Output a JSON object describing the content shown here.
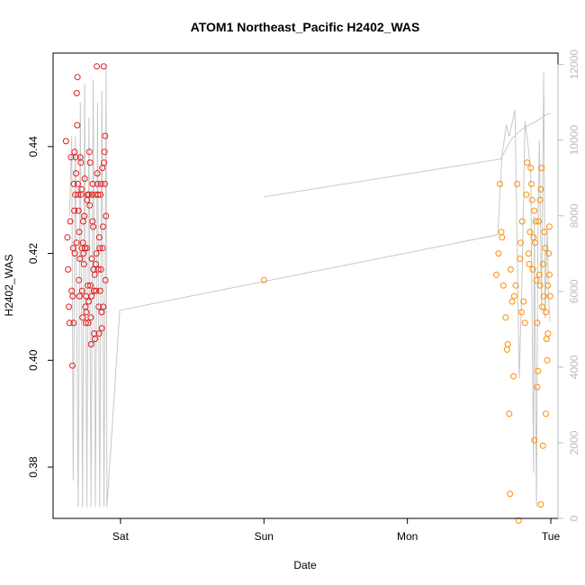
{
  "chart_data": {
    "type": "scatter",
    "title": "ATOM1 Northeast_Pacific H2402_WAS",
    "xlabel": "Date",
    "ylabel": "H2402_WAS",
    "x_ticks": [
      "Sat",
      "Sun",
      "Mon",
      "Tue"
    ],
    "y_ticks": [
      "0.38",
      "0.40",
      "0.42",
      "0.44"
    ],
    "y2_ticks": [
      "0",
      "2000",
      "4000",
      "6000",
      "8000",
      "10000",
      "12000"
    ],
    "xlim_days": [
      -0.47,
      3.05
    ],
    "ylim": [
      0.3704,
      0.4575
    ],
    "y2lim": [
      0,
      12300
    ],
    "colors": {
      "series_1": "#e31a1c",
      "series_2": "#ff8c00",
      "depth_line": "#c8c8c8",
      "frame": "#000000"
    },
    "series": [
      {
        "points": [
          [
            -0.38,
            0.441
          ],
          [
            -0.37,
            0.423
          ],
          [
            -0.365,
            0.417
          ],
          [
            -0.36,
            0.41
          ],
          [
            -0.355,
            0.407
          ],
          [
            -0.35,
            0.426
          ],
          [
            -0.345,
            0.438
          ],
          [
            -0.34,
            0.413
          ],
          [
            -0.335,
            0.399
          ],
          [
            -0.333,
            0.412
          ],
          [
            -0.33,
            0.421
          ],
          [
            -0.327,
            0.407
          ],
          [
            -0.325,
            0.433
          ],
          [
            -0.322,
            0.428
          ],
          [
            -0.32,
            0.439
          ],
          [
            -0.318,
            0.42
          ],
          [
            -0.315,
            0.431
          ],
          [
            -0.312,
            0.438
          ],
          [
            -0.31,
            0.435
          ],
          [
            -0.307,
            0.422
          ],
          [
            -0.305,
            0.45
          ],
          [
            -0.302,
            0.444
          ],
          [
            -0.3,
            0.453
          ],
          [
            -0.298,
            0.433
          ],
          [
            -0.295,
            0.431
          ],
          [
            -0.293,
            0.428
          ],
          [
            -0.29,
            0.415
          ],
          [
            -0.288,
            0.424
          ],
          [
            -0.285,
            0.412
          ],
          [
            -0.283,
            0.419
          ],
          [
            -0.28,
            0.438
          ],
          [
            -0.277,
            0.437
          ],
          [
            -0.275,
            0.431
          ],
          [
            -0.272,
            0.432
          ],
          [
            -0.27,
            0.421
          ],
          [
            -0.268,
            0.413
          ],
          [
            -0.265,
            0.408
          ],
          [
            -0.262,
            0.422
          ],
          [
            -0.26,
            0.426
          ],
          [
            -0.258,
            0.42
          ],
          [
            -0.255,
            0.418
          ],
          [
            -0.252,
            0.427
          ],
          [
            -0.25,
            0.434
          ],
          [
            -0.248,
            0.421
          ],
          [
            -0.245,
            0.41
          ],
          [
            -0.242,
            0.407
          ],
          [
            -0.24,
            0.412
          ],
          [
            -0.238,
            0.409
          ],
          [
            -0.235,
            0.421
          ],
          [
            -0.233,
            0.43
          ],
          [
            -0.23,
            0.431
          ],
          [
            -0.228,
            0.414
          ],
          [
            -0.225,
            0.407
          ],
          [
            -0.222,
            0.411
          ],
          [
            -0.22,
            0.431
          ],
          [
            -0.217,
            0.439
          ],
          [
            -0.215,
            0.429
          ],
          [
            -0.212,
            0.437
          ],
          [
            -0.21,
            0.414
          ],
          [
            -0.207,
            0.408
          ],
          [
            -0.205,
            0.403
          ],
          [
            -0.202,
            0.412
          ],
          [
            -0.2,
            0.419
          ],
          [
            -0.198,
            0.431
          ],
          [
            -0.195,
            0.426
          ],
          [
            -0.193,
            0.433
          ],
          [
            -0.19,
            0.425
          ],
          [
            -0.188,
            0.417
          ],
          [
            -0.185,
            0.413
          ],
          [
            -0.183,
            0.405
          ],
          [
            -0.18,
            0.416
          ],
          [
            -0.178,
            0.404
          ],
          [
            -0.175,
            0.431
          ],
          [
            -0.172,
            0.418
          ],
          [
            -0.17,
            0.413
          ],
          [
            -0.168,
            0.42
          ],
          [
            -0.165,
            0.455
          ],
          [
            -0.162,
            0.435
          ],
          [
            -0.16,
            0.433
          ],
          [
            -0.157,
            0.431
          ],
          [
            -0.155,
            0.417
          ],
          [
            -0.152,
            0.41
          ],
          [
            -0.15,
            0.405
          ],
          [
            -0.148,
            0.423
          ],
          [
            -0.145,
            0.421
          ],
          [
            -0.142,
            0.413
          ],
          [
            -0.14,
            0.431
          ],
          [
            -0.137,
            0.417
          ],
          [
            -0.135,
            0.433
          ],
          [
            -0.132,
            0.409
          ],
          [
            -0.13,
            0.406
          ],
          [
            -0.127,
            0.436
          ],
          [
            -0.125,
            0.421
          ],
          [
            -0.122,
            0.425
          ],
          [
            -0.12,
            0.41
          ],
          [
            -0.117,
            0.455
          ],
          [
            -0.115,
            0.437
          ],
          [
            -0.112,
            0.439
          ],
          [
            -0.11,
            0.433
          ],
          [
            -0.107,
            0.442
          ],
          [
            -0.105,
            0.415
          ],
          [
            -0.102,
            0.427
          ]
        ]
      },
      {
        "points": [
          [
            1.0,
            0.415
          ],
          [
            2.62,
            0.416
          ],
          [
            2.635,
            0.42
          ],
          [
            2.645,
            0.433
          ],
          [
            2.655,
            0.424
          ],
          [
            2.66,
            0.423
          ],
          [
            2.67,
            0.414
          ],
          [
            2.685,
            0.408
          ],
          [
            2.695,
            0.402
          ],
          [
            2.7,
            0.403
          ],
          [
            2.71,
            0.39
          ],
          [
            2.715,
            0.375
          ],
          [
            2.72,
            0.417
          ],
          [
            2.73,
            0.411
          ],
          [
            2.74,
            0.397
          ],
          [
            2.745,
            0.412
          ],
          [
            2.755,
            0.414
          ],
          [
            2.765,
            0.433
          ],
          [
            2.775,
            0.37
          ],
          [
            2.785,
            0.419
          ],
          [
            2.79,
            0.422
          ],
          [
            2.795,
            0.409
          ],
          [
            2.8,
            0.426
          ],
          [
            2.81,
            0.411
          ],
          [
            2.82,
            0.407
          ],
          [
            2.83,
            0.431
          ],
          [
            2.835,
            0.437
          ],
          [
            2.845,
            0.42
          ],
          [
            2.85,
            0.418
          ],
          [
            2.855,
            0.424
          ],
          [
            2.86,
            0.436
          ],
          [
            2.865,
            0.433
          ],
          [
            2.87,
            0.43
          ],
          [
            2.875,
            0.417
          ],
          [
            2.88,
            0.423
          ],
          [
            2.885,
            0.428
          ],
          [
            2.89,
            0.422
          ],
          [
            2.895,
            0.426
          ],
          [
            2.9,
            0.415
          ],
          [
            2.905,
            0.407
          ],
          [
            2.91,
            0.398
          ],
          [
            2.915,
            0.426
          ],
          [
            2.92,
            0.416
          ],
          [
            2.925,
            0.414
          ],
          [
            2.93,
            0.432
          ],
          [
            2.935,
            0.436
          ],
          [
            2.94,
            0.41
          ],
          [
            2.945,
            0.418
          ],
          [
            2.95,
            0.412
          ],
          [
            2.955,
            0.424
          ],
          [
            2.96,
            0.421
          ],
          [
            2.965,
            0.409
          ],
          [
            2.97,
            0.404
          ],
          [
            2.975,
            0.4
          ],
          [
            2.98,
            0.414
          ],
          [
            2.985,
            0.42
          ],
          [
            2.99,
            0.416
          ],
          [
            2.995,
            0.412
          ],
          [
            2.885,
            0.385
          ],
          [
            2.965,
            0.39
          ],
          [
            2.93,
            0.373
          ],
          [
            2.945,
            0.384
          ],
          [
            2.905,
            0.395
          ],
          [
            2.925,
            0.43
          ],
          [
            2.98,
            0.405
          ],
          [
            2.99,
            0.425
          ]
        ]
      }
    ],
    "depth_line": {
      "axis": "right",
      "segments": [
        [
          [
            -0.355,
            8000
          ],
          [
            -0.34,
            10100
          ],
          [
            -0.33,
            1000
          ],
          [
            -0.315,
            10100
          ],
          [
            -0.295,
            300
          ],
          [
            -0.28,
            11000
          ],
          [
            -0.265,
            300
          ],
          [
            -0.25,
            11500
          ],
          [
            -0.235,
            300
          ],
          [
            -0.22,
            10600
          ],
          [
            -0.205,
            300
          ],
          [
            -0.19,
            11600
          ],
          [
            -0.175,
            300
          ],
          [
            -0.16,
            11000
          ],
          [
            -0.145,
            300
          ],
          [
            -0.13,
            11300
          ],
          [
            -0.115,
            300
          ],
          [
            -0.1,
            12000
          ],
          [
            -0.095,
            300
          ],
          [
            -0.005,
            5500
          ],
          [
            2.63,
            7500
          ],
          [
            2.66,
            9600
          ],
          [
            2.69,
            10400
          ],
          [
            2.71,
            10100
          ],
          [
            2.75,
            10800
          ],
          [
            2.78,
            3700
          ],
          [
            2.8,
            6500
          ],
          [
            2.82,
            10500
          ],
          [
            2.84,
            9900
          ],
          [
            2.86,
            9200
          ],
          [
            2.88,
            1200
          ],
          [
            2.885,
            8000
          ],
          [
            2.9,
            300
          ],
          [
            2.91,
            7600
          ],
          [
            2.92,
            10000
          ],
          [
            2.935,
            5500
          ],
          [
            2.95,
            11800
          ],
          [
            2.96,
            5300
          ],
          [
            2.975,
            7700
          ],
          [
            2.985,
            5800
          ],
          [
            2.995,
            5200
          ]
        ],
        [
          [
            1.0,
            8500
          ],
          [
            2.65,
            9500
          ],
          [
            2.72,
            10000
          ],
          [
            2.8,
            10300
          ],
          [
            2.9,
            10500
          ],
          [
            2.98,
            10700
          ],
          [
            3.0,
            10700
          ]
        ]
      ]
    }
  }
}
